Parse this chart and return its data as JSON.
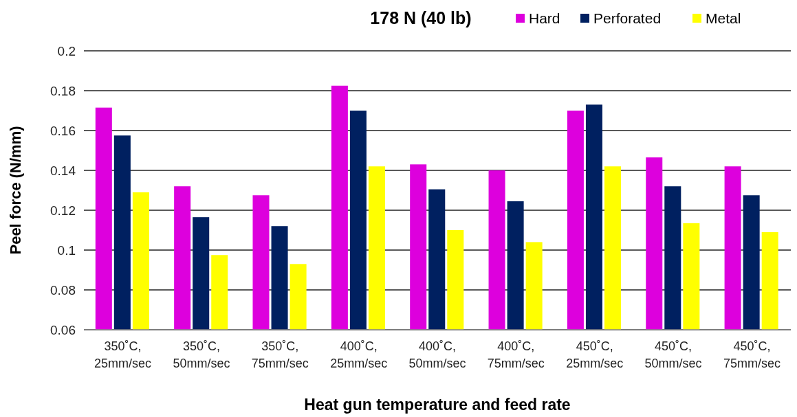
{
  "chart_data": {
    "type": "bar",
    "title": "178 N (40 lb)",
    "xlabel": "Heat gun temperature and feed rate",
    "ylabel": "Peel force (N/mm)",
    "categories": [
      "350˚C,\n25mm/sec",
      "350˚C,\n50mm/sec",
      "350˚C,\n75mm/sec",
      "400˚C,\n25mm/sec",
      "400˚C,\n50mm/sec",
      "400˚C,\n75mm/sec",
      "450˚C,\n25mm/sec",
      "450˚C,\n50mm/sec",
      "450˚C,\n75mm/sec"
    ],
    "series": [
      {
        "name": "Hard",
        "color": "#dd00dd",
        "values": [
          0.1715,
          0.132,
          0.1275,
          0.1825,
          0.143,
          0.14,
          0.17,
          0.1465,
          0.142
        ]
      },
      {
        "name": "Perforated",
        "color": "#002060",
        "values": [
          0.1575,
          0.1165,
          0.112,
          0.17,
          0.1305,
          0.1245,
          0.173,
          0.132,
          0.1275
        ]
      },
      {
        "name": "Metal",
        "color": "#ffff00",
        "values": [
          0.129,
          0.0975,
          0.093,
          0.142,
          0.11,
          0.104,
          0.142,
          0.1135,
          0.109
        ]
      }
    ],
    "ylim": [
      0.06,
      0.2
    ],
    "yticks": [
      0.06,
      0.08,
      0.1,
      0.12,
      0.14,
      0.16,
      0.18,
      0.2
    ],
    "grid": "y",
    "legend": "top right"
  }
}
